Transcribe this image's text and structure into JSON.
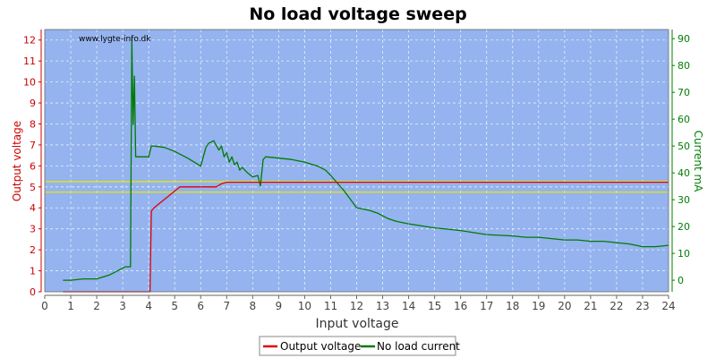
{
  "chart_data": {
    "type": "line",
    "title": "No load voltage sweep",
    "xlabel": "Input voltage",
    "ylabel_left": "Output voltage",
    "ylabel_right": "Current mA",
    "watermark": "www.lygte-info.dk",
    "xlim": [
      0,
      24
    ],
    "ylim_left": [
      0,
      12.5
    ],
    "ylim_right": [
      -4.3,
      93.4
    ],
    "x_ticks": [
      0,
      1,
      2,
      3,
      4,
      5,
      6,
      7,
      8,
      9,
      10,
      11,
      12,
      13,
      14,
      15,
      16,
      17,
      18,
      19,
      20,
      21,
      22,
      23,
      24
    ],
    "y_left_ticks": [
      0,
      1,
      2,
      3,
      4,
      5,
      6,
      7,
      8,
      9,
      10,
      11,
      12
    ],
    "y_right_ticks": [
      0,
      10,
      20,
      30,
      40,
      50,
      60,
      70,
      80,
      90
    ],
    "grid": true,
    "legend_position": "bottom",
    "reference_lines_left": [
      4.75,
      5.25
    ],
    "colors": {
      "plot_background": "#94b3ef",
      "output_voltage": "#e00000",
      "no_load_current": "#007a00",
      "reference_line": "#e6e600",
      "left_axis": "#cc0000",
      "right_axis": "#008000"
    },
    "series": [
      {
        "name": "Output voltage",
        "axis": "left",
        "x": [
          0.7,
          2.0,
          3.0,
          4.05,
          4.1,
          4.2,
          4.5,
          4.8,
          5.0,
          5.2,
          5.5,
          6.0,
          6.6,
          6.8,
          7.0,
          8.0,
          10.0,
          12.0,
          14.0,
          16.0,
          18.0,
          20.0,
          22.0,
          24.0
        ],
        "y": [
          0.0,
          0.0,
          0.0,
          0.0,
          3.85,
          4.0,
          4.3,
          4.6,
          4.8,
          5.0,
          5.0,
          5.0,
          5.0,
          5.15,
          5.22,
          5.22,
          5.22,
          5.22,
          5.22,
          5.22,
          5.22,
          5.22,
          5.22,
          5.22
        ]
      },
      {
        "name": "No load current",
        "axis": "right",
        "x": [
          0.7,
          1.0,
          1.5,
          2.0,
          2.5,
          2.9,
          3.1,
          3.3,
          3.35,
          3.4,
          3.45,
          3.5,
          3.55,
          3.6,
          3.8,
          4.0,
          4.1,
          4.2,
          4.6,
          5.0,
          5.5,
          6.0,
          6.2,
          6.3,
          6.5,
          6.7,
          6.8,
          6.9,
          7.0,
          7.1,
          7.2,
          7.3,
          7.4,
          7.5,
          7.6,
          7.8,
          8.0,
          8.2,
          8.3,
          8.4,
          8.5,
          9.0,
          9.5,
          10.0,
          10.5,
          10.8,
          11.0,
          11.5,
          12.0,
          12.5,
          12.8,
          13.0,
          13.2,
          13.5,
          14.0,
          15.0,
          16.0,
          17.0,
          18.0,
          18.5,
          19.0,
          20.0,
          20.5,
          21.0,
          21.5,
          22.0,
          22.5,
          23.0,
          23.5,
          24.0
        ],
        "y": [
          0.0,
          0.0,
          0.5,
          0.5,
          2.0,
          4.0,
          5.0,
          5.0,
          90.0,
          58.0,
          76.0,
          46.0,
          46.0,
          46.0,
          46.0,
          46.0,
          50.0,
          50.0,
          49.5,
          48.0,
          45.5,
          42.5,
          49.5,
          51.0,
          52.0,
          48.5,
          50.0,
          46.0,
          47.5,
          44.0,
          46.0,
          43.0,
          44.0,
          41.0,
          42.0,
          40.0,
          38.5,
          39.0,
          35.0,
          45.0,
          46.0,
          45.5,
          45.0,
          44.0,
          42.5,
          41.0,
          39.0,
          33.5,
          27.0,
          26.0,
          25.0,
          24.0,
          23.0,
          22.0,
          21.0,
          19.5,
          18.5,
          17.0,
          16.5,
          16.0,
          16.0,
          15.0,
          15.0,
          14.5,
          14.5,
          14.0,
          13.5,
          12.5,
          12.5,
          13.0
        ]
      }
    ]
  }
}
